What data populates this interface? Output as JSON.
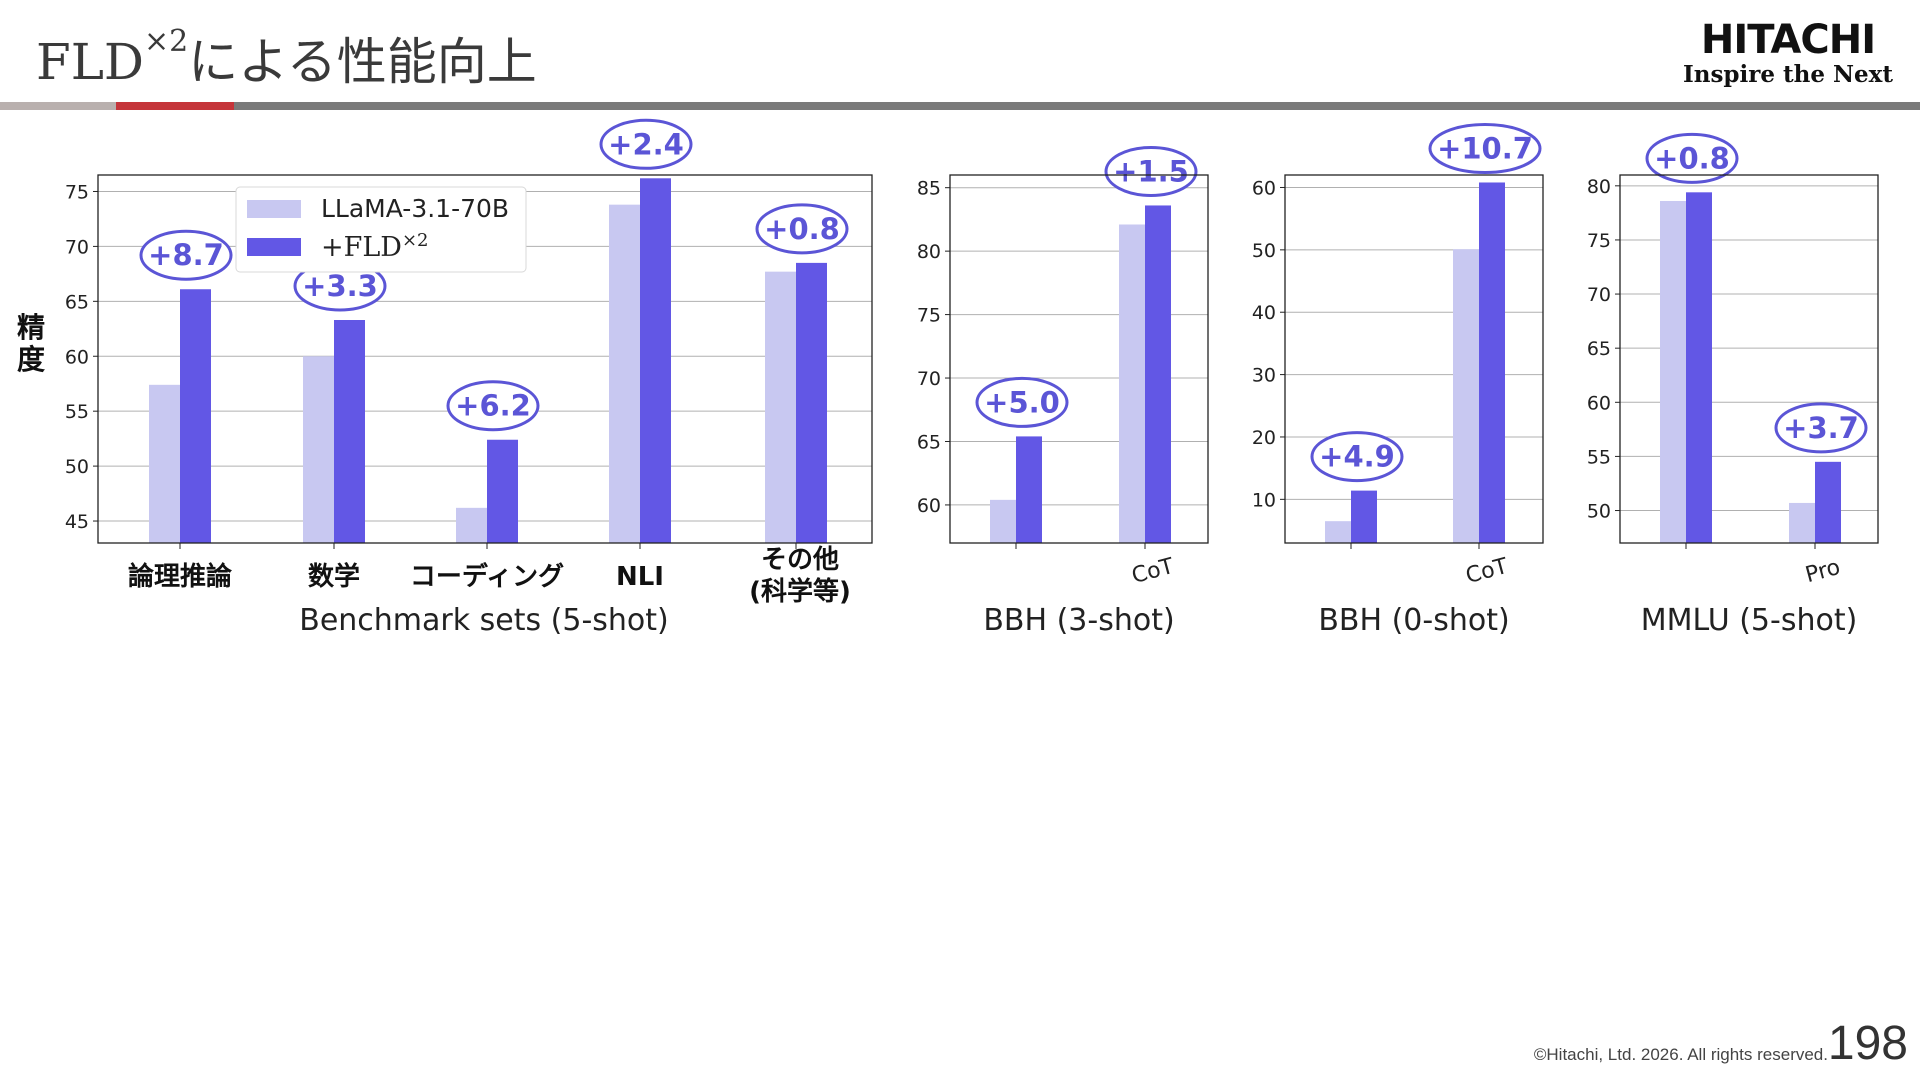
{
  "slide": {
    "title_main": "FLD",
    "title_sup": "×2",
    "title_rest": "による性能向上",
    "logo_main": "HITACHI",
    "logo_sub": "Inspire the Next",
    "footer": "©Hitachi, Ltd. 2026. All rights reserved.",
    "page_number": "198"
  },
  "colors": {
    "base": "#c8c8f1",
    "fld": "#6257e5",
    "annotation": "#5b55d6",
    "grid": "#b0b0b0"
  },
  "y_axis_label": "精度",
  "legend": {
    "base": "LLaMA-3.1-70B",
    "fld_main": "+FLD",
    "fld_sup": "×2"
  },
  "chart_data": [
    {
      "type": "bar",
      "xlabel": "Benchmark sets (5-shot)",
      "ylim": [
        43,
        76.5
      ],
      "yticks": [
        45,
        50,
        55,
        60,
        65,
        70,
        75
      ],
      "categories": [
        "論理推論",
        "数学",
        "コーディング",
        "NLI",
        "その他\n(科学等)"
      ],
      "series": [
        {
          "name": "LLaMA-3.1-70B",
          "values": [
            57.4,
            60.0,
            46.2,
            73.8,
            67.7
          ]
        },
        {
          "name": "+FLD×2",
          "values": [
            66.1,
            63.3,
            52.4,
            76.2,
            68.5
          ]
        }
      ],
      "annotations": [
        "+8.7",
        "+3.3",
        "+6.2",
        "+2.4",
        "+0.8"
      ]
    },
    {
      "type": "bar",
      "xlabel": "BBH (3-shot)",
      "ylim": [
        57,
        86
      ],
      "yticks": [
        60,
        65,
        70,
        75,
        80,
        85
      ],
      "categories": [
        "",
        "CoT"
      ],
      "series": [
        {
          "name": "LLaMA-3.1-70B",
          "values": [
            60.4,
            82.1
          ]
        },
        {
          "name": "+FLD×2",
          "values": [
            65.4,
            83.6
          ]
        }
      ],
      "annotations": [
        "+5.0",
        "+1.5"
      ]
    },
    {
      "type": "bar",
      "xlabel": "BBH (0-shot)",
      "ylim": [
        3,
        62
      ],
      "yticks": [
        10,
        20,
        30,
        40,
        50,
        60
      ],
      "categories": [
        "",
        "CoT"
      ],
      "series": [
        {
          "name": "LLaMA-3.1-70B",
          "values": [
            6.5,
            50.1
          ]
        },
        {
          "name": "+FLD×2",
          "values": [
            11.4,
            60.8
          ]
        }
      ],
      "annotations": [
        "+4.9",
        "+10.7"
      ]
    },
    {
      "type": "bar",
      "xlabel": "MMLU (5-shot)",
      "ylim": [
        47,
        81
      ],
      "yticks": [
        50,
        55,
        60,
        65,
        70,
        75,
        80
      ],
      "categories": [
        "",
        "Pro"
      ],
      "series": [
        {
          "name": "LLaMA-3.1-70B",
          "values": [
            78.6,
            50.7
          ]
        },
        {
          "name": "+FLD×2",
          "values": [
            79.4,
            54.5
          ]
        }
      ],
      "annotations": [
        "+0.8",
        "+3.7"
      ]
    }
  ]
}
